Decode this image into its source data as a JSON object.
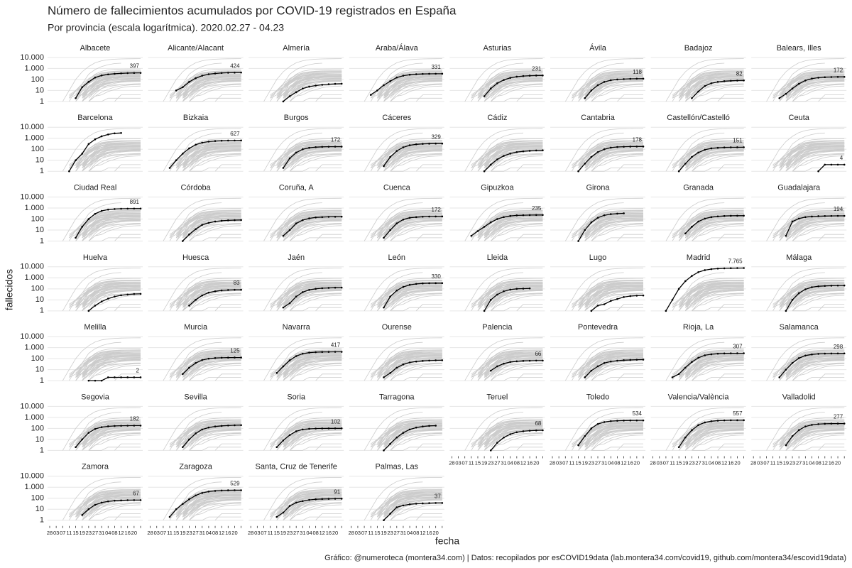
{
  "chart_data": {
    "type": "line",
    "title": "Número de fallecimientos acumulados por COVID-19 registrados en España",
    "subtitle": "Por provincia (escala logarítmica). 2020.02.27 - 04.23",
    "x_label": "fecha",
    "y_label": "fallecidos",
    "caption": "Gráfico: @numeroteca (montera34.com) | Datos: recopilados por esCOVID19data (lab.montera34.com/covid19, github.com/montera34/escovid19data)",
    "log_scale": true,
    "grid": true,
    "highlight_color": "#000000",
    "background_color": "#cccccc",
    "ylim": [
      0.35,
      24000
    ],
    "yticks": [
      1,
      10,
      100,
      {
        "value": 1000,
        "label": "1.000"
      },
      {
        "value": 10000,
        "label": "10.000"
      }
    ],
    "categories": [
      "28",
      "03",
      "07",
      "11",
      "15",
      "19",
      "23",
      "27",
      "31",
      "04",
      "08",
      "12",
      "16",
      "20",
      null
    ],
    "series": [
      {
        "name": "Albacete",
        "label_last": true,
        "values": [
          null,
          null,
          null,
          null,
          2,
          20,
          60,
          150,
          230,
          290,
          330,
          360,
          380,
          392,
          397
        ]
      },
      {
        "name": "Alicante/Alacant",
        "label_last": true,
        "values": [
          null,
          null,
          null,
          null,
          10,
          20,
          60,
          130,
          220,
          300,
          350,
          390,
          410,
          420,
          424
        ]
      },
      {
        "name": "Almería",
        "label_last": false,
        "values": [
          null,
          null,
          null,
          null,
          null,
          1,
          3,
          7,
          15,
          22,
          28,
          33,
          37,
          40,
          41
        ]
      },
      {
        "name": "Araba/Álava",
        "label_last": true,
        "values": [
          null,
          null,
          null,
          4,
          10,
          30,
          70,
          150,
          220,
          270,
          300,
          315,
          325,
          330,
          331
        ]
      },
      {
        "name": "Asturias",
        "label_last": true,
        "values": [
          null,
          null,
          null,
          null,
          null,
          3,
          15,
          45,
          90,
          140,
          180,
          205,
          220,
          228,
          231
        ]
      },
      {
        "name": "Ávila",
        "label_last": true,
        "values": [
          null,
          null,
          null,
          null,
          null,
          2,
          10,
          30,
          60,
          85,
          100,
          108,
          114,
          117,
          118
        ]
      },
      {
        "name": "Badajoz",
        "label_last": true,
        "values": [
          null,
          null,
          null,
          null,
          null,
          null,
          2,
          8,
          25,
          45,
          60,
          70,
          76,
          80,
          82
        ]
      },
      {
        "name": "Balears, Illes",
        "label_last": true,
        "values": [
          null,
          null,
          null,
          null,
          2,
          5,
          15,
          40,
          80,
          120,
          145,
          160,
          166,
          170,
          172
        ]
      },
      {
        "name": "Barcelona",
        "label_last": false,
        "values": [
          null,
          null,
          null,
          1,
          10,
          40,
          300,
          800,
          1500,
          2200,
          2800,
          3000,
          null,
          null,
          null
        ]
      },
      {
        "name": "Bizkaia",
        "label_last": true,
        "values": [
          null,
          null,
          null,
          2,
          10,
          40,
          120,
          260,
          400,
          500,
          560,
          600,
          615,
          625,
          627
        ]
      },
      {
        "name": "Burgos",
        "label_last": true,
        "values": [
          null,
          null,
          null,
          null,
          null,
          2,
          15,
          50,
          100,
          135,
          155,
          165,
          170,
          172,
          172
        ]
      },
      {
        "name": "Cáceres",
        "label_last": true,
        "values": [
          null,
          null,
          null,
          null,
          null,
          3,
          20,
          70,
          150,
          230,
          280,
          310,
          322,
          328,
          329
        ]
      },
      {
        "name": "Cádiz",
        "label_last": false,
        "values": [
          null,
          null,
          null,
          null,
          null,
          1,
          4,
          12,
          25,
          40,
          55,
          65,
          72,
          78,
          80
        ]
      },
      {
        "name": "Cantabria",
        "label_last": true,
        "values": [
          null,
          null,
          null,
          null,
          1,
          5,
          20,
          55,
          100,
          140,
          160,
          170,
          175,
          177,
          178
        ]
      },
      {
        "name": "Castellón/Castelló",
        "label_last": true,
        "values": [
          null,
          null,
          null,
          null,
          1,
          5,
          20,
          50,
          90,
          120,
          135,
          145,
          149,
          150,
          151
        ]
      },
      {
        "name": "Ceuta",
        "label_last": true,
        "values": [
          null,
          null,
          null,
          null,
          null,
          null,
          null,
          null,
          null,
          null,
          1,
          4,
          4,
          4,
          4
        ]
      },
      {
        "name": "Ciudad Real",
        "label_last": true,
        "values": [
          null,
          null,
          null,
          null,
          2,
          20,
          100,
          300,
          550,
          720,
          810,
          860,
          880,
          890,
          891
        ]
      },
      {
        "name": "Córdoba",
        "label_last": false,
        "values": [
          null,
          null,
          null,
          null,
          null,
          1,
          4,
          12,
          30,
          45,
          60,
          70,
          76,
          80,
          82
        ]
      },
      {
        "name": "Coruña, A",
        "label_last": false,
        "values": [
          null,
          null,
          null,
          null,
          null,
          3,
          10,
          40,
          80,
          115,
          140,
          150,
          158,
          162,
          165
        ]
      },
      {
        "name": "Cuenca",
        "label_last": true,
        "values": [
          null,
          null,
          null,
          null,
          null,
          2,
          10,
          40,
          90,
          130,
          150,
          162,
          168,
          171,
          172
        ]
      },
      {
        "name": "Gipuzkoa",
        "label_last": true,
        "values": [
          null,
          null,
          null,
          3,
          8,
          20,
          50,
          100,
          150,
          190,
          215,
          225,
          230,
          234,
          235
        ]
      },
      {
        "name": "Girona",
        "label_last": false,
        "values": [
          null,
          null,
          null,
          null,
          1,
          10,
          50,
          130,
          220,
          280,
          310,
          330,
          null,
          null,
          null
        ]
      },
      {
        "name": "Granada",
        "label_last": false,
        "values": [
          null,
          null,
          null,
          null,
          null,
          5,
          20,
          60,
          110,
          150,
          175,
          190,
          197,
          200,
          202
        ]
      },
      {
        "name": "Guadalajara",
        "label_last": true,
        "values": [
          null,
          null,
          null,
          null,
          null,
          3,
          60,
          110,
          150,
          170,
          182,
          188,
          192,
          194,
          194
        ]
      },
      {
        "name": "Huelva",
        "label_last": false,
        "values": [
          null,
          null,
          null,
          null,
          null,
          null,
          1,
          3,
          7,
          13,
          20,
          26,
          30,
          34,
          35
        ]
      },
      {
        "name": "Huesca",
        "label_last": true,
        "values": [
          null,
          null,
          null,
          null,
          null,
          null,
          3,
          10,
          25,
          45,
          60,
          72,
          78,
          82,
          83
        ]
      },
      {
        "name": "Jaén",
        "label_last": false,
        "values": [
          null,
          null,
          null,
          null,
          null,
          2,
          5,
          20,
          50,
          80,
          100,
          115,
          122,
          128,
          130
        ]
      },
      {
        "name": "León",
        "label_last": true,
        "values": [
          null,
          null,
          null,
          null,
          null,
          2,
          20,
          70,
          150,
          230,
          280,
          310,
          322,
          328,
          330
        ]
      },
      {
        "name": "Lleida",
        "label_last": false,
        "values": [
          null,
          null,
          null,
          null,
          null,
          1,
          10,
          30,
          60,
          85,
          100,
          105,
          110,
          null,
          null
        ]
      },
      {
        "name": "Lugo",
        "label_last": false,
        "values": [
          null,
          null,
          null,
          null,
          null,
          null,
          1,
          3,
          4,
          8,
          12,
          18,
          22,
          24,
          25
        ]
      },
      {
        "name": "Madrid",
        "label_last": true,
        "values": [
          null,
          null,
          1,
          10,
          100,
          500,
          1500,
          3300,
          5000,
          6200,
          6900,
          7300,
          7550,
          7700,
          7765
        ],
        "value_labels": [
          null,
          null,
          null,
          null,
          null,
          null,
          null,
          null,
          null,
          null,
          null,
          null,
          null,
          null,
          "7.765"
        ]
      },
      {
        "name": "Málaga",
        "label_last": false,
        "values": [
          null,
          null,
          null,
          null,
          null,
          1,
          10,
          40,
          90,
          140,
          170,
          185,
          195,
          200,
          202
        ]
      },
      {
        "name": "Melilla",
        "label_last": true,
        "values": [
          null,
          null,
          null,
          null,
          null,
          null,
          1,
          1,
          1,
          2,
          2,
          2,
          2,
          2,
          2
        ]
      },
      {
        "name": "Murcia",
        "label_last": true,
        "values": [
          null,
          null,
          null,
          null,
          null,
          4,
          15,
          40,
          75,
          100,
          112,
          120,
          123,
          125,
          125
        ]
      },
      {
        "name": "Navarra",
        "label_last": true,
        "values": [
          null,
          null,
          null,
          null,
          5,
          20,
          70,
          170,
          280,
          350,
          385,
          405,
          412,
          416,
          417
        ]
      },
      {
        "name": "Ourense",
        "label_last": false,
        "values": [
          null,
          null,
          null,
          null,
          null,
          2,
          5,
          15,
          30,
          45,
          55,
          62,
          66,
          70,
          71
        ]
      },
      {
        "name": "Palencia",
        "label_last": true,
        "values": [
          null,
          null,
          null,
          null,
          null,
          null,
          8,
          20,
          35,
          50,
          58,
          62,
          64,
          66,
          66
        ]
      },
      {
        "name": "Pontevedra",
        "label_last": false,
        "values": [
          null,
          null,
          null,
          null,
          null,
          2,
          8,
          20,
          40,
          55,
          65,
          72,
          76,
          80,
          82
        ]
      },
      {
        "name": "Rioja, La",
        "label_last": true,
        "values": [
          null,
          null,
          null,
          2,
          4,
          15,
          50,
          120,
          200,
          250,
          280,
          295,
          302,
          306,
          307
        ]
      },
      {
        "name": "Salamanca",
        "label_last": true,
        "values": [
          null,
          null,
          null,
          null,
          2,
          10,
          40,
          110,
          190,
          240,
          270,
          285,
          292,
          297,
          298
        ]
      },
      {
        "name": "Segovia",
        "label_last": true,
        "values": [
          null,
          null,
          null,
          null,
          2,
          10,
          40,
          90,
          130,
          155,
          168,
          175,
          179,
          181,
          182
        ]
      },
      {
        "name": "Sevilla",
        "label_last": false,
        "values": [
          null,
          null,
          null,
          null,
          null,
          2,
          10,
          35,
          80,
          120,
          150,
          170,
          185,
          195,
          200
        ]
      },
      {
        "name": "Soria",
        "label_last": true,
        "values": [
          null,
          null,
          null,
          null,
          2,
          8,
          25,
          55,
          80,
          92,
          97,
          100,
          101,
          102,
          102
        ]
      },
      {
        "name": "Tarragona",
        "label_last": false,
        "values": [
          null,
          null,
          null,
          null,
          null,
          1,
          4,
          15,
          40,
          80,
          120,
          150,
          170,
          180,
          null
        ]
      },
      {
        "name": "Teruel",
        "label_last": true,
        "values": [
          null,
          null,
          null,
          null,
          null,
          null,
          1,
          5,
          15,
          30,
          45,
          55,
          62,
          66,
          68
        ]
      },
      {
        "name": "Toledo",
        "label_last": true,
        "values": [
          null,
          null,
          null,
          null,
          3,
          20,
          100,
          250,
          380,
          460,
          500,
          520,
          530,
          533,
          534
        ]
      },
      {
        "name": "Valencia/València",
        "label_last": true,
        "values": [
          null,
          null,
          null,
          null,
          2,
          15,
          70,
          200,
          350,
          450,
          510,
          540,
          552,
          556,
          557
        ]
      },
      {
        "name": "Valladolid",
        "label_last": true,
        "values": [
          null,
          null,
          null,
          null,
          null,
          3,
          20,
          70,
          150,
          210,
          245,
          262,
          272,
          276,
          277
        ]
      },
      {
        "name": "Zamora",
        "label_last": true,
        "values": [
          null,
          null,
          null,
          null,
          null,
          3,
          10,
          25,
          40,
          52,
          60,
          63,
          66,
          67,
          67
        ]
      },
      {
        "name": "Zaragoza",
        "label_last": true,
        "values": [
          null,
          null,
          null,
          2,
          10,
          30,
          80,
          180,
          300,
          400,
          460,
          500,
          520,
          528,
          529
        ]
      },
      {
        "name": "Santa, Cruz de Tenerife",
        "label_last": true,
        "values": [
          null,
          null,
          null,
          null,
          2,
          5,
          20,
          40,
          55,
          70,
          80,
          85,
          88,
          90,
          91
        ]
      },
      {
        "name": "Palmas, Las",
        "label_last": true,
        "values": [
          null,
          null,
          null,
          null,
          null,
          1,
          4,
          15,
          22,
          28,
          32,
          34,
          36,
          37,
          37
        ]
      }
    ]
  }
}
